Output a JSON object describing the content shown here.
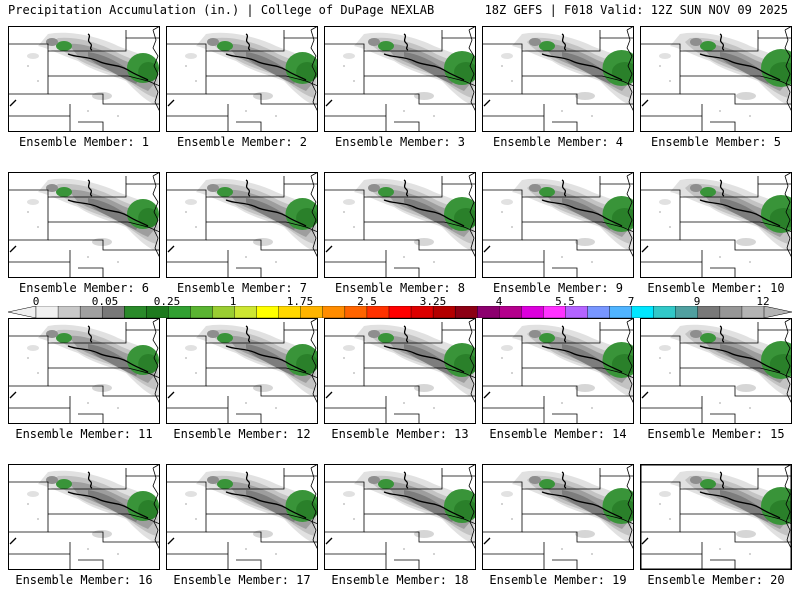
{
  "header": {
    "left": "Precipitation Accumulation (in.) | College of DuPage NEXLAB",
    "right": "18Z GEFS | F018 Valid: 12Z SUN NOV 09 2025"
  },
  "panels": [
    {
      "label": "Ensemble Member: 1"
    },
    {
      "label": "Ensemble Member: 2"
    },
    {
      "label": "Ensemble Member: 3"
    },
    {
      "label": "Ensemble Member: 4"
    },
    {
      "label": "Ensemble Member: 5"
    },
    {
      "label": "Ensemble Member: 6"
    },
    {
      "label": "Ensemble Member: 7"
    },
    {
      "label": "Ensemble Member: 8"
    },
    {
      "label": "Ensemble Member: 9"
    },
    {
      "label": "Ensemble Member: 10"
    },
    {
      "label": "Ensemble Member: 11"
    },
    {
      "label": "Ensemble Member: 12"
    },
    {
      "label": "Ensemble Member: 13"
    },
    {
      "label": "Ensemble Member: 14"
    },
    {
      "label": "Ensemble Member: 15"
    },
    {
      "label": "Ensemble Member: 16"
    },
    {
      "label": "Ensemble Member: 17"
    },
    {
      "label": "Ensemble Member: 18"
    },
    {
      "label": "Ensemble Member: 19"
    },
    {
      "label": "Ensemble Member: 20"
    }
  ],
  "colorbar": {
    "ticks": [
      "0",
      "0.05",
      "0.25",
      "1",
      "1.75",
      "2.5",
      "3.25",
      "4",
      "5.5",
      "7",
      "9",
      "12"
    ],
    "colors": [
      "#f0f0f0",
      "#c8c8c8",
      "#a0a0a0",
      "#787878",
      "#2a8a2a",
      "#1e7a1e",
      "#32a032",
      "#5ab432",
      "#9acd32",
      "#cde632",
      "#ffff00",
      "#ffd700",
      "#ffb400",
      "#ff8c00",
      "#ff6400",
      "#ff3200",
      "#ff0000",
      "#dc0000",
      "#b40000",
      "#8c0014",
      "#8c006e",
      "#b4008c",
      "#dc00dc",
      "#ff32ff",
      "#b464ff",
      "#7896ff",
      "#50b4ff",
      "#00e6ff",
      "#32c8c8",
      "#50a0a0",
      "#787878",
      "#969696",
      "#b4b4b4"
    ]
  }
}
